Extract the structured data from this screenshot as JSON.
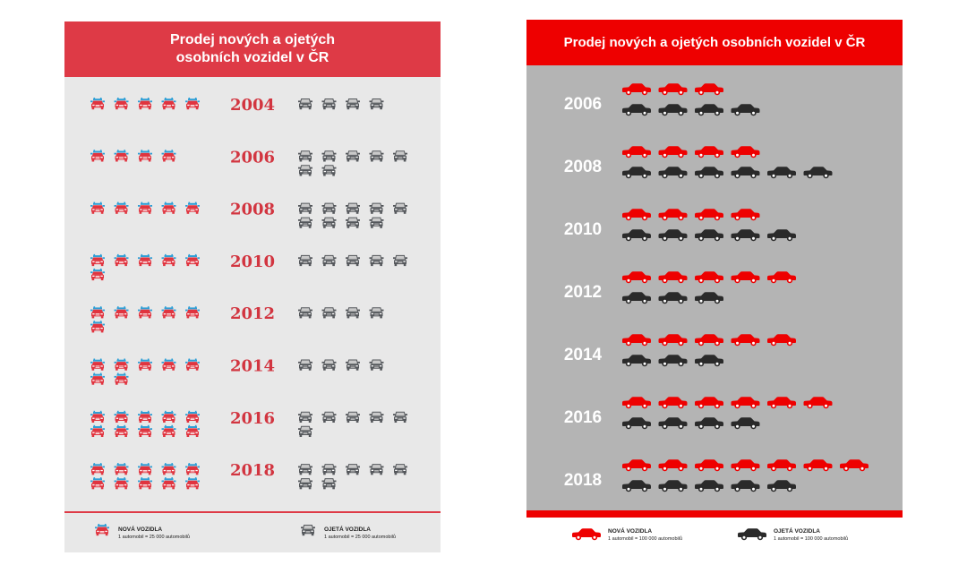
{
  "colors": {
    "left_header": "#de3a46",
    "left_panel": "#e8e8e8",
    "left_year": "#d23540",
    "car_red": "#e0343f",
    "car_blue_accent": "#2f9fd6",
    "car_gray": "#55585c",
    "right_header": "#ee0000",
    "right_panel": "#b4b4b4",
    "car_red_right": "#ee0000",
    "car_black_right": "#2a2a2a"
  },
  "icons": {
    "left_new": "red-car-front-icon",
    "left_used": "gray-car-front-icon",
    "right_new": "red-car-side-icon",
    "right_used": "black-car-side-icon"
  },
  "chart_data": [
    {
      "type": "pictograph",
      "title": "Prodej nových a ojetých osobních vozidel v ČR",
      "categories": [
        "2004",
        "2006",
        "2008",
        "2010",
        "2012",
        "2014",
        "2016",
        "2018"
      ],
      "series": [
        {
          "name": "NOVÁ VOZIDLA",
          "values": [
            5,
            4,
            5,
            6,
            6,
            7,
            10,
            10
          ]
        },
        {
          "name": "OJETÁ VOZIDLA",
          "values": [
            4,
            7,
            9,
            5,
            4,
            4,
            6,
            7
          ]
        }
      ],
      "legend": {
        "position": "bottom",
        "new_label": "NOVÁ VOZIDLA",
        "new_unit": "1 automobil = 25 000 automobilů",
        "used_label": "OJETÁ VOZIDLA",
        "used_unit": "1 automobil = 25 000 automobilů"
      }
    },
    {
      "type": "pictograph",
      "title": "Prodej nových a ojetých osobních vozidel v ČR",
      "categories": [
        "2006",
        "2008",
        "2010",
        "2012",
        "2014",
        "2016",
        "2018"
      ],
      "series": [
        {
          "name": "NOVÁ VOZIDLA",
          "values": [
            3,
            4,
            4,
            5,
            5,
            6,
            7
          ]
        },
        {
          "name": "OJETÁ VOZIDLA",
          "values": [
            4,
            6,
            5,
            3,
            3,
            4,
            5
          ]
        }
      ],
      "legend": {
        "position": "bottom",
        "new_label": "NOVÁ VOZIDLA",
        "new_unit": "1 automobil = 100 000 automobilů",
        "used_label": "OJETÁ VOZIDLA",
        "used_unit": "1 automobil = 100 000 automobilů"
      }
    }
  ]
}
